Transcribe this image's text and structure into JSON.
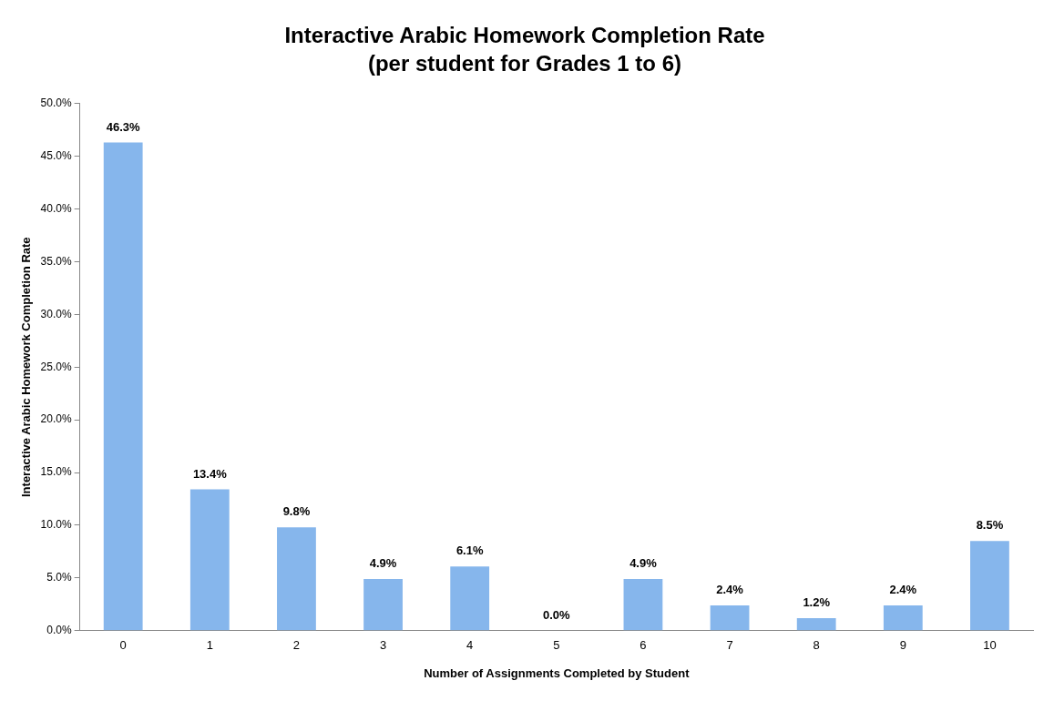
{
  "chart_data": {
    "type": "bar",
    "title": "Interactive Arabic Homework Completion Rate",
    "subtitle": "(per student for Grades 1 to 6)",
    "xlabel": "Number of Assignments Completed by Student",
    "ylabel": "Interactive Arabic Homework Completion Rate",
    "categories": [
      "0",
      "1",
      "2",
      "3",
      "4",
      "5",
      "6",
      "7",
      "8",
      "9",
      "10"
    ],
    "values": [
      46.3,
      13.4,
      9.8,
      4.9,
      6.1,
      0.0,
      4.9,
      2.4,
      1.2,
      2.4,
      8.5
    ],
    "value_labels": [
      "46.3%",
      "13.4%",
      "9.8%",
      "4.9%",
      "6.1%",
      "0.0%",
      "4.9%",
      "2.4%",
      "1.2%",
      "2.4%",
      "8.5%"
    ],
    "color": "#86b6ec",
    "ylim": [
      0,
      50
    ],
    "yticks": [
      {
        "value": 0,
        "label": "0.0%"
      },
      {
        "value": 5,
        "label": "5.0%"
      },
      {
        "value": 10,
        "label": "10.0%"
      },
      {
        "value": 15,
        "label": "15.0%"
      },
      {
        "value": 20,
        "label": "20.0%"
      },
      {
        "value": 25,
        "label": "25.0%"
      },
      {
        "value": 30,
        "label": "30.0%"
      },
      {
        "value": 35,
        "label": "35.0%"
      },
      {
        "value": 40,
        "label": "40.0%"
      },
      {
        "value": 45,
        "label": "45.0%"
      },
      {
        "value": 50,
        "label": "50.0%"
      }
    ],
    "grid": false,
    "legend": false
  }
}
